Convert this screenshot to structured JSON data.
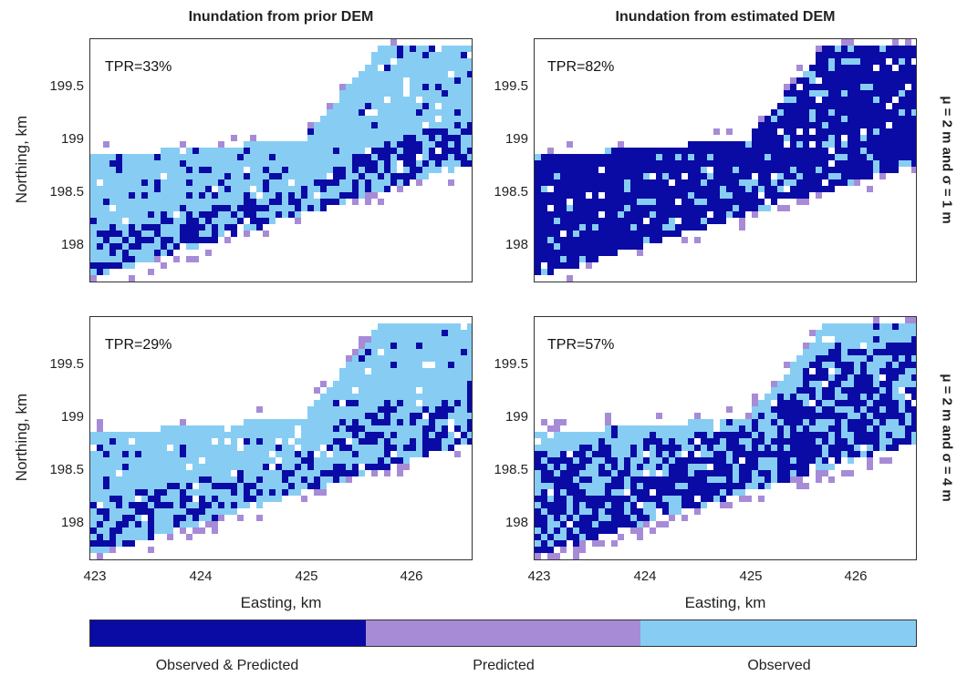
{
  "titles": {
    "left": "Inundation from prior DEM",
    "right": "Inundation from estimated DEM"
  },
  "row_labels": {
    "top": "μ = 2 m and σ = 1 m",
    "bottom": "μ = 2 m and σ = 4 m"
  },
  "axes": {
    "xlabel": "Easting, km",
    "ylabel": "Northing, km",
    "xticks": [
      "423",
      "424",
      "425",
      "426"
    ],
    "yticks": [
      "199.5",
      "199",
      "198.5",
      "198"
    ]
  },
  "colors": {
    "observed_predicted": "#0a0aa5",
    "predicted": "#a78bd6",
    "observed": "#87cdf3"
  },
  "legend": {
    "observed_predicted": "Observed & Predicted",
    "predicted": "Predicted",
    "observed": "Observed"
  },
  "chart_data": [
    {
      "type": "heatmap",
      "title": "Inundation from prior DEM",
      "row_label": "μ = 2 m and σ = 1 m",
      "annotation": "TPR=33%",
      "tpr": 33,
      "xlabel": "",
      "ylabel": "Northing, km",
      "xlim": [
        422.95,
        426.7
      ],
      "ylim": [
        197.7,
        199.95
      ]
    },
    {
      "type": "heatmap",
      "title": "Inundation from estimated DEM",
      "row_label": "μ = 2 m and σ = 1 m",
      "annotation": "TPR=82%",
      "tpr": 82,
      "xlabel": "",
      "ylabel": "",
      "xlim": [
        422.95,
        426.7
      ],
      "ylim": [
        197.7,
        199.95
      ]
    },
    {
      "type": "heatmap",
      "title": "",
      "row_label": "μ = 2 m and σ = 4 m",
      "annotation": "TPR=29%",
      "tpr": 29,
      "xlabel": "Easting, km",
      "ylabel": "Northing, km",
      "xlim": [
        422.95,
        426.7
      ],
      "ylim": [
        197.7,
        199.95
      ]
    },
    {
      "type": "heatmap",
      "title": "",
      "row_label": "μ = 2 m and σ = 4 m",
      "annotation": "TPR=57%",
      "tpr": 57,
      "xlabel": "Easting, km",
      "ylabel": "",
      "xlim": [
        422.95,
        426.7
      ],
      "ylim": [
        197.7,
        199.95
      ]
    }
  ]
}
